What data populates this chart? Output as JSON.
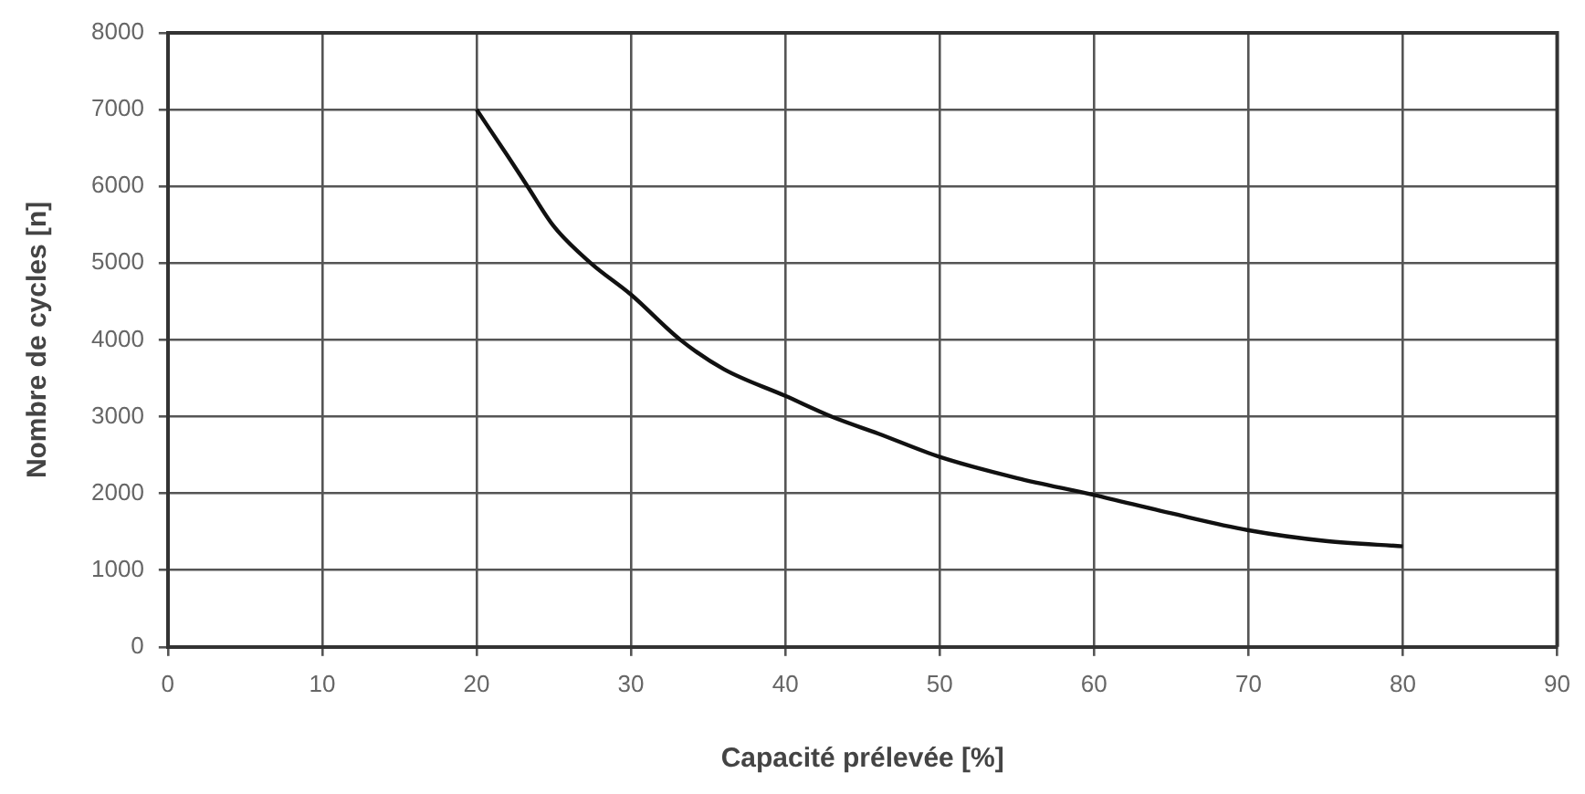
{
  "chart_data": {
    "type": "line",
    "xlabel": "Capacité prélevée [%]",
    "ylabel": "Nombre de cycles [n]",
    "series": [
      {
        "color": "#111111",
        "x": [
          20,
          22,
          23.3,
          25,
          27.4,
          30,
          33.2,
          36,
          40,
          43,
          46,
          50,
          55,
          60,
          65,
          70,
          75,
          80
        ],
        "values": [
          7000,
          6400,
          6000,
          5480,
          5000,
          4590,
          4000,
          3620,
          3270,
          3000,
          2780,
          2475,
          2200,
          1980,
          1740,
          1520,
          1380,
          1310
        ]
      }
    ],
    "xlim": [
      0,
      90
    ],
    "xticks": [
      0,
      10,
      20,
      30,
      40,
      50,
      60,
      70,
      80,
      90
    ],
    "ylim": [
      0,
      8000
    ],
    "yticks": [
      0,
      1000,
      2000,
      3000,
      4000,
      5000,
      6000,
      7000,
      8000
    ],
    "grid": true,
    "legend": false,
    "marker": "none",
    "line_style": "solid"
  }
}
